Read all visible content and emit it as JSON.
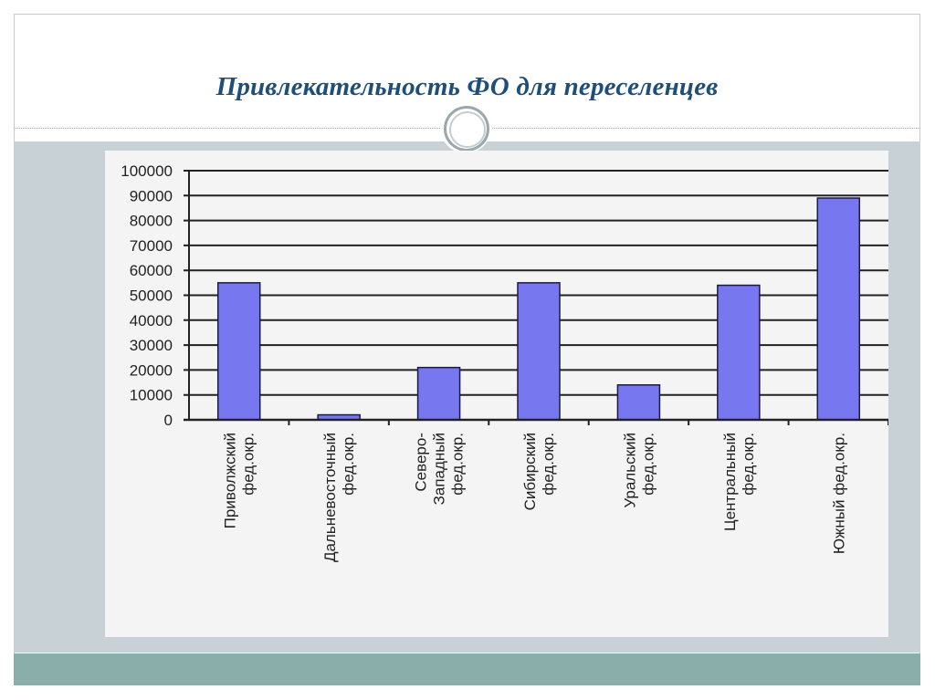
{
  "slide": {
    "title": "Привлекательность ФО для переселенцев"
  },
  "colors": {
    "bar": "#7777f0",
    "bar_border": "#1a1a4a",
    "grid": "#222222",
    "panel": "#f4f4f4",
    "content_band": "#c7d1d6",
    "footer_band": "#8aaeaa",
    "title": "#1f4e79"
  },
  "chart_data": {
    "type": "bar",
    "title": "",
    "xlabel": "",
    "ylabel": "",
    "ylim": [
      0,
      100000
    ],
    "yticks": [
      0,
      10000,
      20000,
      30000,
      40000,
      50000,
      60000,
      70000,
      80000,
      90000,
      100000
    ],
    "grid": true,
    "categories": [
      [
        "Приволжский",
        "фед.окр."
      ],
      [
        "Дальневосточный",
        "фед.окр."
      ],
      [
        "Северо-",
        "Западный",
        "фед.окр."
      ],
      [
        "Сибирский",
        "фед.окр."
      ],
      [
        "Уральский",
        "фед.окр."
      ],
      [
        "Центральный",
        "фед.окр."
      ],
      [
        "Южный фед.окр."
      ]
    ],
    "values": [
      55000,
      2000,
      21000,
      55000,
      14000,
      54000,
      89000
    ]
  }
}
